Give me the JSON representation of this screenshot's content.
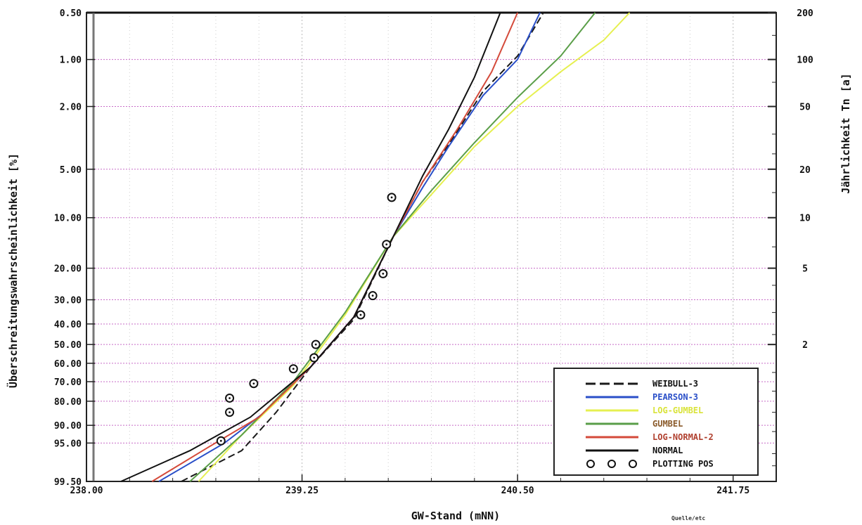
{
  "chart_data": {
    "type": "line",
    "xlabel": "GW-Stand (mNN)",
    "ylabel_left": "Überschreitungswahrscheinlichkeit [%]",
    "ylabel_right": "Jährlichkeit Tn [a]",
    "xlim": [
      238.0,
      242.0
    ],
    "x_ticks": [
      "238.00",
      "239.25",
      "240.50",
      "241.75"
    ],
    "x_tick_values": [
      238.0,
      239.25,
      240.5,
      241.75
    ],
    "y_scale": "gumbel-probability",
    "ylim": [
      0.5,
      99.5
    ],
    "y_ticks_left": [
      "0.50",
      "1.00",
      "2.00",
      "5.00",
      "10.00",
      "20.00",
      "30.00",
      "40.00",
      "50.00",
      "60.00",
      "70.00",
      "80.00",
      "90.00",
      "95.00",
      "99.50"
    ],
    "y_tick_values_left": [
      0.5,
      1,
      2,
      5,
      10,
      20,
      30,
      40,
      50,
      60,
      70,
      80,
      90,
      95,
      99.5
    ],
    "y_ticks_right": [
      "200",
      "100",
      "50",
      "20",
      "10",
      "5",
      "2"
    ],
    "y_tick_values_right_percent": [
      0.5,
      1,
      2,
      5,
      10,
      20,
      50
    ],
    "grid": true,
    "legend_position": "bottom-right",
    "series": [
      {
        "name": "WEIBULL-3",
        "color": "#1a1a1a",
        "dash": "dashed",
        "x": [
          238.55,
          238.9,
          239.1,
          239.3,
          239.55,
          239.78,
          239.95,
          240.1,
          240.3,
          240.5,
          240.65
        ],
        "y": [
          99.5,
          96.5,
          85,
          62,
          38,
          13,
          6,
          3.5,
          1.6,
          0.95,
          0.5
        ]
      },
      {
        "name": "PEARSON-3",
        "color": "#2a4fc8",
        "dash": "solid",
        "x": [
          238.42,
          238.8,
          239.05,
          239.3,
          239.55,
          239.78,
          239.95,
          240.1,
          240.3,
          240.5,
          240.63
        ],
        "y": [
          99.5,
          95,
          84,
          62,
          37,
          13,
          6.5,
          3.6,
          1.7,
          1.0,
          0.5
        ]
      },
      {
        "name": "LOG-GUMBEL",
        "color": "#e6f050",
        "dash": "solid",
        "x": [
          238.65,
          238.9,
          239.2,
          239.5,
          239.78,
          240.0,
          240.25,
          240.5,
          240.75,
          241.0,
          241.15
        ],
        "y": [
          99.5,
          93,
          72,
          36,
          13,
          7.2,
          3.6,
          2.0,
          1.2,
          0.75,
          0.5
        ]
      },
      {
        "name": "GUMBEL",
        "color": "#5a9e48",
        "dash": "solid",
        "x": [
          238.6,
          238.9,
          239.2,
          239.5,
          239.78,
          240.0,
          240.25,
          240.5,
          240.75,
          240.95
        ],
        "y": [
          99.5,
          93,
          70,
          35,
          13,
          6.8,
          3.4,
          1.75,
          0.95,
          0.5
        ]
      },
      {
        "name": "LOG-NORMAL-2",
        "color": "#d44a3a",
        "dash": "solid",
        "x": [
          238.38,
          238.7,
          239.0,
          239.3,
          239.55,
          239.78,
          239.95,
          240.15,
          240.35,
          240.5
        ],
        "y": [
          99.5,
          96,
          87,
          62,
          37,
          13,
          6,
          2.8,
          1.2,
          0.5
        ]
      },
      {
        "name": "NORMAL",
        "color": "#111111",
        "dash": "solid",
        "x": [
          238.2,
          238.6,
          238.95,
          239.3,
          239.55,
          239.78,
          239.95,
          240.1,
          240.25,
          240.4
        ],
        "y": [
          99.5,
          96.5,
          87,
          62,
          37,
          13,
          5.5,
          2.8,
          1.3,
          0.5
        ]
      }
    ],
    "plotting_positions": {
      "name": "PLOTTING POS",
      "x": [
        238.78,
        238.83,
        238.83,
        238.97,
        239.2,
        239.32,
        239.33,
        239.59,
        239.66,
        239.72,
        239.74,
        239.77
      ],
      "y": [
        94.5,
        85,
        78.5,
        71,
        63,
        57,
        50,
        36,
        28.5,
        21.5,
        14.5,
        7.5
      ]
    }
  },
  "footer_note": "Quelle/etc"
}
